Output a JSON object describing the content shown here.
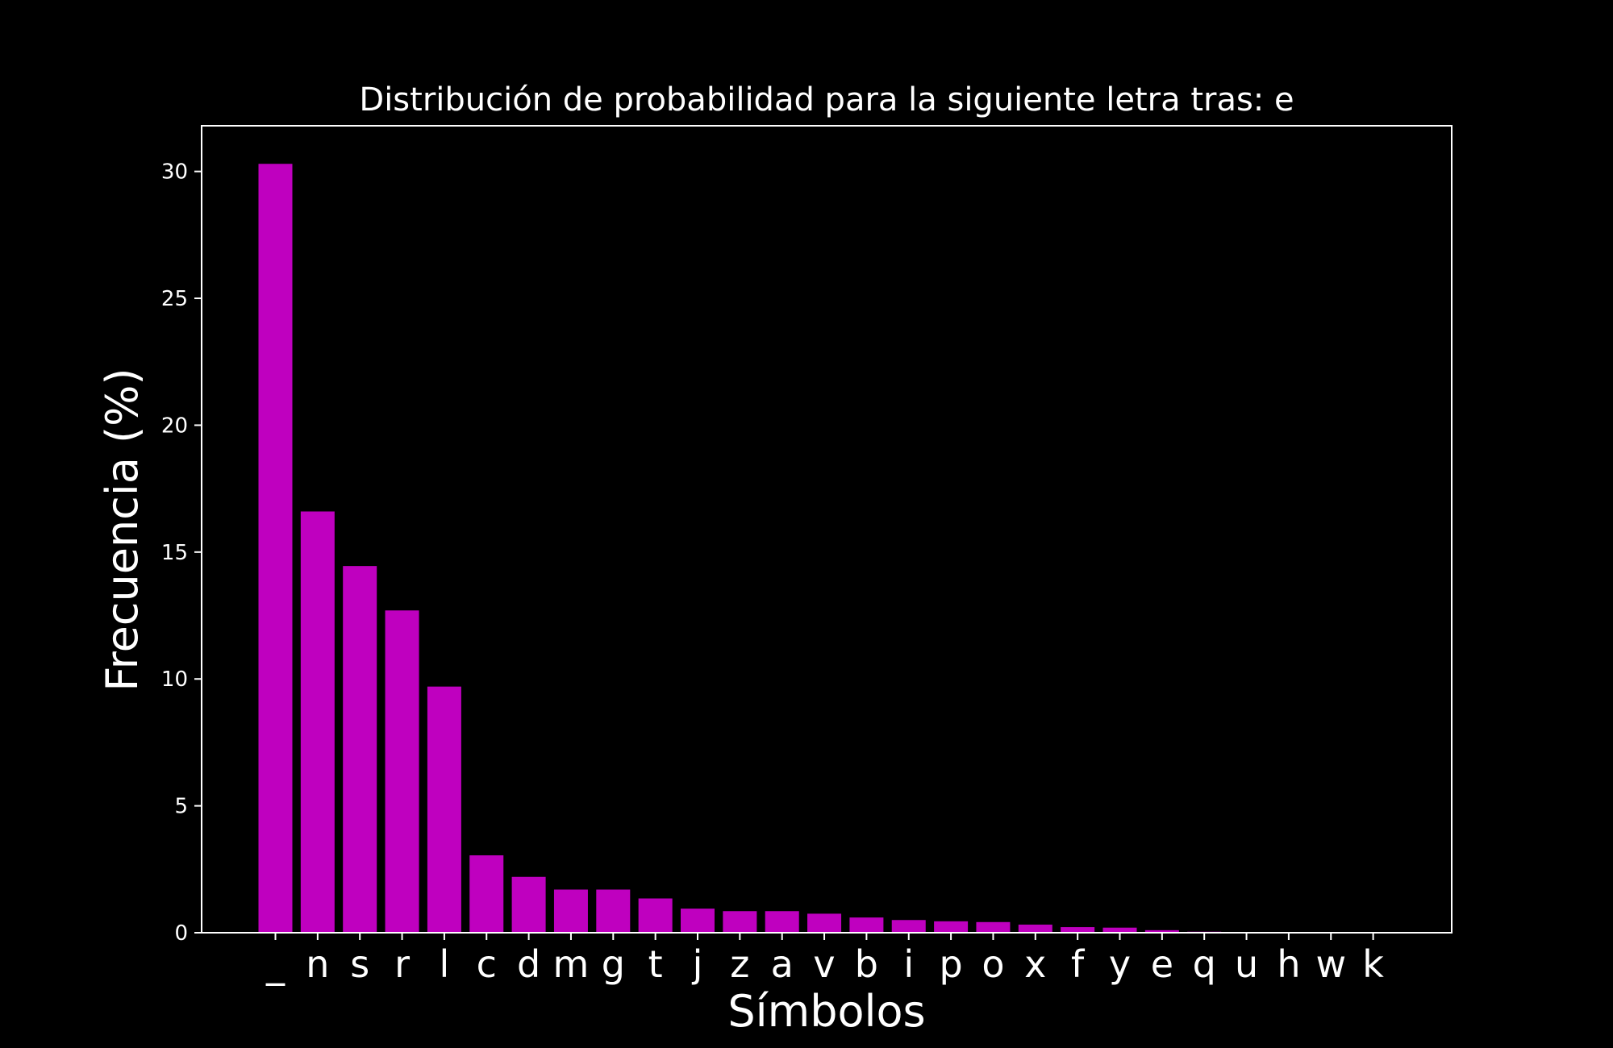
{
  "chart_data": {
    "type": "bar",
    "title": "Distribución de probabilidad para la siguiente letra tras: e",
    "xlabel": "Símbolos",
    "ylabel": "Frecuencia (%)",
    "categories": [
      "_",
      "n",
      "s",
      "r",
      "l",
      "c",
      "d",
      "m",
      "g",
      "t",
      "j",
      "z",
      "a",
      "v",
      "b",
      "i",
      "p",
      "o",
      "x",
      "f",
      "y",
      "e",
      "q",
      "u",
      "h",
      "w",
      "k"
    ],
    "values": [
      30.3,
      16.6,
      14.45,
      12.7,
      9.7,
      3.05,
      2.2,
      1.7,
      1.7,
      1.35,
      0.95,
      0.85,
      0.85,
      0.75,
      0.6,
      0.5,
      0.45,
      0.42,
      0.32,
      0.22,
      0.2,
      0.1,
      0.04,
      0.01,
      0.005,
      0.003,
      0.002
    ],
    "yticks": [
      0,
      5,
      10,
      15,
      20,
      25,
      30
    ],
    "ylim": [
      0,
      31.8
    ],
    "bar_color": "#bf00bf",
    "background": "#000000",
    "foreground": "#ffffff",
    "grid": false,
    "legend": "none"
  }
}
